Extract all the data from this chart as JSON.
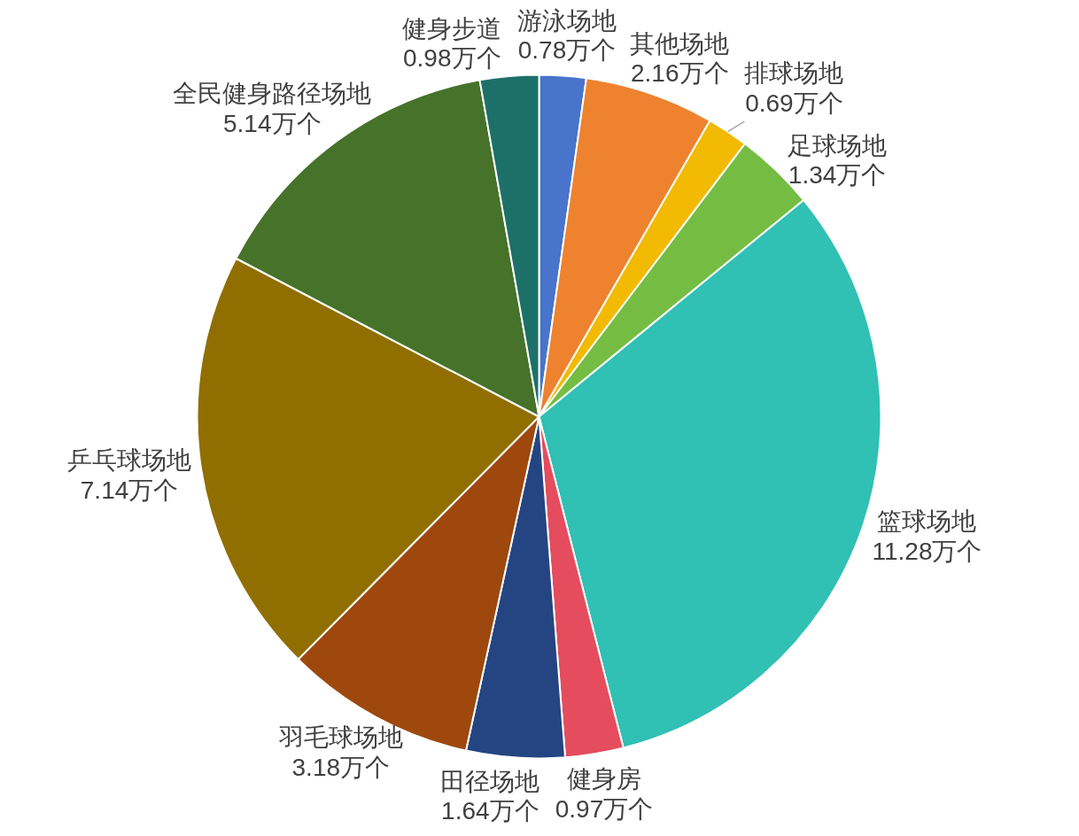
{
  "chart_data": {
    "type": "pie",
    "categories": [
      "游泳场地",
      "其他场地",
      "排球场地",
      "足球场地",
      "篮球场地",
      "健身房",
      "田径场地",
      "羽毛球场地",
      "乒乓球场地",
      "全民健身路径场地",
      "健身步道"
    ],
    "values": [
      0.78,
      2.16,
      0.69,
      1.34,
      11.28,
      0.97,
      1.64,
      3.18,
      7.14,
      5.14,
      0.98
    ],
    "colors": [
      "#4874cb",
      "#ee822f",
      "#f2ba02",
      "#75bd42",
      "#30c0b4",
      "#e54c5e",
      "#254582",
      "#9e480e",
      "#906f00",
      "#46722a",
      "#1d7068"
    ],
    "value_labels": [
      "0.78万个",
      "2.16万个",
      "0.69万个",
      "1.34万个",
      "11.28万个",
      "0.97万个",
      "1.64万个",
      "3.18万个",
      "7.14万个",
      "5.14万个",
      "0.98万个"
    ]
  }
}
